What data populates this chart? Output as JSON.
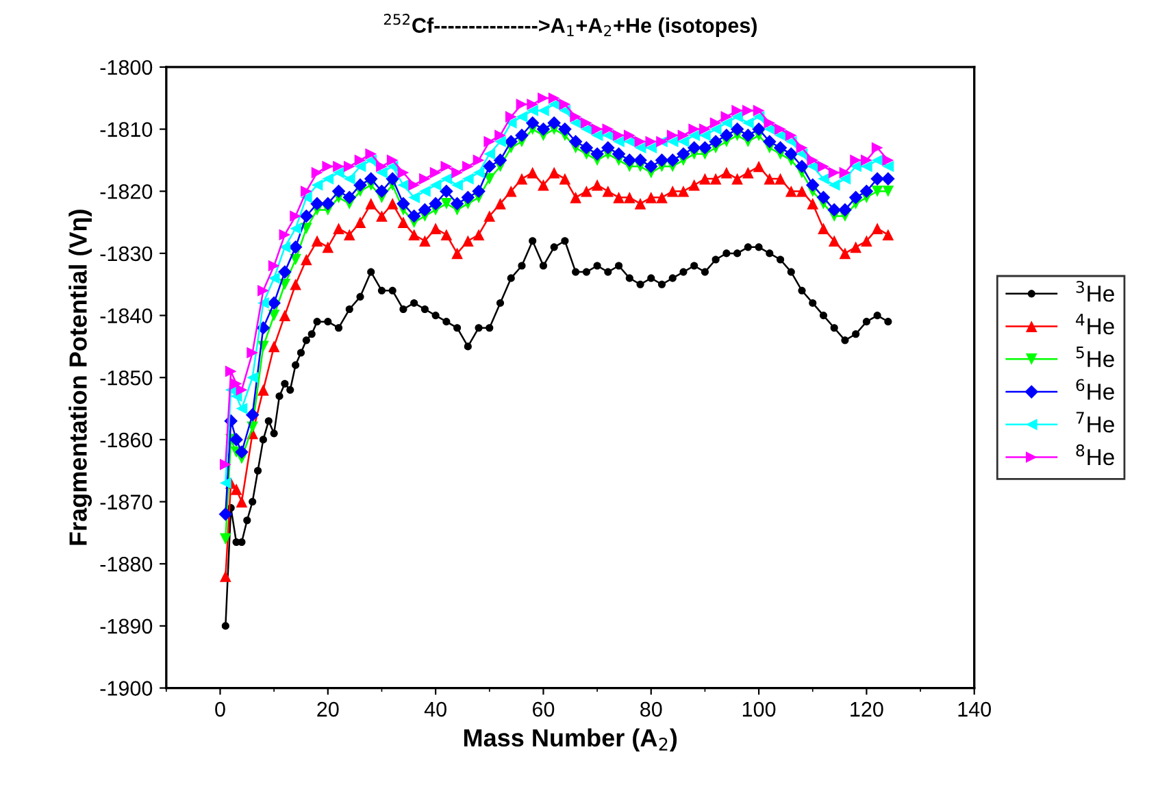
{
  "chart_data": {
    "type": "line",
    "title": "$^{252}$Cf--------------->A$_{1}$+A$_{2}$+He (isotopes)",
    "xlabel": "Mass Number (A$_{2}$)",
    "ylabel": "Fragmentation Potential (Vη)",
    "xlim": [
      -10,
      140
    ],
    "xticks": [
      0,
      20,
      40,
      60,
      80,
      100,
      120,
      140
    ],
    "ylim": [
      -1900,
      -1800
    ],
    "yticks": [
      -1900,
      -1890,
      -1880,
      -1870,
      -1860,
      -1850,
      -1840,
      -1830,
      -1820,
      -1810,
      -1800
    ],
    "grid": false,
    "legend": "right",
    "line_style": "solid",
    "series": [
      {
        "name": "$^{3}$He",
        "color": "#000000",
        "marker": "circle",
        "x": [
          1,
          2,
          3,
          4,
          5,
          6,
          7,
          8,
          9,
          10,
          11,
          12,
          13,
          14,
          15,
          16,
          17,
          18,
          20,
          22,
          24,
          26,
          28,
          30,
          32,
          34,
          36,
          38,
          40,
          42,
          44,
          46,
          48,
          50,
          52,
          54,
          56,
          58,
          60,
          62,
          64,
          66,
          68,
          70,
          72,
          74,
          76,
          78,
          80,
          82,
          84,
          86,
          88,
          90,
          92,
          94,
          96,
          98,
          100,
          102,
          104,
          106,
          108,
          110,
          112,
          114,
          116,
          118,
          120,
          122,
          124
        ],
        "values": [
          -1890,
          -1871,
          -1876.5,
          -1876.5,
          -1873,
          -1870,
          -1865,
          -1860,
          -1857,
          -1859,
          -1853,
          -1851,
          -1852,
          -1848,
          -1846,
          -1844,
          -1843,
          -1841,
          -1841,
          -1842,
          -1839,
          -1837,
          -1833,
          -1836,
          -1836,
          -1839,
          -1838,
          -1839,
          -1840,
          -1841,
          -1842,
          -1845,
          -1842,
          -1842,
          -1838,
          -1834,
          -1832,
          -1828,
          -1832,
          -1829,
          -1828,
          -1833,
          -1833,
          -1832,
          -1833,
          -1832,
          -1834,
          -1835,
          -1834,
          -1835,
          -1834,
          -1833,
          -1832,
          -1833,
          -1831,
          -1830,
          -1830,
          -1829,
          -1829,
          -1830,
          -1831,
          -1833,
          -1836,
          -1838,
          -1840,
          -1842,
          -1844,
          -1843,
          -1841,
          -1840,
          -1841
        ]
      },
      {
        "name": "$^{4}$He",
        "color": "#ff0000",
        "marker": "triangle",
        "x": [
          1,
          2,
          3,
          4,
          6,
          8,
          10,
          12,
          14,
          16,
          18,
          20,
          22,
          24,
          26,
          28,
          30,
          32,
          34,
          36,
          38,
          40,
          42,
          44,
          46,
          48,
          50,
          52,
          54,
          56,
          58,
          60,
          62,
          64,
          66,
          68,
          70,
          72,
          74,
          76,
          78,
          80,
          82,
          84,
          86,
          88,
          90,
          92,
          94,
          96,
          98,
          100,
          102,
          104,
          106,
          108,
          110,
          112,
          114,
          116,
          118,
          120,
          122,
          124
        ],
        "values": [
          -1882,
          -1867,
          -1868,
          -1870,
          -1859,
          -1852,
          -1845,
          -1840,
          -1835,
          -1831,
          -1828,
          -1829,
          -1826,
          -1827,
          -1825,
          -1822,
          -1824,
          -1822,
          -1825,
          -1827,
          -1828,
          -1826,
          -1827,
          -1830,
          -1828,
          -1827,
          -1824,
          -1822,
          -1820,
          -1818,
          -1817,
          -1819,
          -1817,
          -1818,
          -1821,
          -1820,
          -1819,
          -1820,
          -1821,
          -1821,
          -1822,
          -1821,
          -1821,
          -1820,
          -1820,
          -1819,
          -1818,
          -1818,
          -1817,
          -1818,
          -1817,
          -1816,
          -1818,
          -1818,
          -1820,
          -1820,
          -1822,
          -1826,
          -1828,
          -1830,
          -1829,
          -1828,
          -1826,
          -1827
        ]
      },
      {
        "name": "$^{5}$He",
        "color": "#00ff00",
        "marker": "triangle_down",
        "x": [
          1,
          2,
          3,
          4,
          6,
          8,
          10,
          12,
          14,
          16,
          18,
          20,
          22,
          24,
          26,
          28,
          30,
          32,
          34,
          36,
          38,
          40,
          42,
          44,
          46,
          48,
          50,
          52,
          54,
          56,
          58,
          60,
          62,
          64,
          66,
          68,
          70,
          72,
          74,
          76,
          78,
          80,
          82,
          84,
          86,
          88,
          90,
          92,
          94,
          96,
          98,
          100,
          102,
          104,
          106,
          108,
          110,
          112,
          114,
          116,
          118,
          120,
          122,
          124
        ],
        "values": [
          -1876,
          -1860,
          -1862,
          -1863,
          -1858,
          -1845,
          -1840,
          -1835,
          -1831,
          -1826,
          -1823,
          -1823,
          -1821,
          -1822,
          -1820,
          -1819,
          -1821,
          -1819,
          -1823,
          -1825,
          -1824,
          -1823,
          -1822,
          -1823,
          -1822,
          -1821,
          -1818,
          -1816,
          -1813,
          -1812,
          -1810,
          -1811,
          -1810,
          -1811,
          -1813,
          -1814,
          -1815,
          -1814,
          -1815,
          -1816,
          -1816,
          -1817,
          -1816,
          -1816,
          -1815,
          -1814,
          -1814,
          -1813,
          -1812,
          -1811,
          -1812,
          -1811,
          -1813,
          -1814,
          -1815,
          -1817,
          -1820,
          -1822,
          -1824,
          -1824,
          -1822,
          -1821,
          -1820,
          -1820
        ]
      },
      {
        "name": "$^{6}$He",
        "color": "#0000ff",
        "marker": "diamond",
        "x": [
          1,
          2,
          3,
          4,
          6,
          8,
          10,
          12,
          14,
          16,
          18,
          20,
          22,
          24,
          26,
          28,
          30,
          32,
          34,
          36,
          38,
          40,
          42,
          44,
          46,
          48,
          50,
          52,
          54,
          56,
          58,
          60,
          62,
          64,
          66,
          68,
          70,
          72,
          74,
          76,
          78,
          80,
          82,
          84,
          86,
          88,
          90,
          92,
          94,
          96,
          98,
          100,
          102,
          104,
          106,
          108,
          110,
          112,
          114,
          116,
          118,
          120,
          122,
          124
        ],
        "values": [
          -1872,
          -1857,
          -1860,
          -1862,
          -1856,
          -1842,
          -1838,
          -1833,
          -1829,
          -1824,
          -1822,
          -1822,
          -1820,
          -1821,
          -1819,
          -1818,
          -1820,
          -1818,
          -1822,
          -1824,
          -1823,
          -1822,
          -1820,
          -1822,
          -1821,
          -1820,
          -1816,
          -1815,
          -1812,
          -1811,
          -1809,
          -1810,
          -1809,
          -1810,
          -1812,
          -1813,
          -1814,
          -1813,
          -1814,
          -1815,
          -1815,
          -1816,
          -1815,
          -1815,
          -1814,
          -1813,
          -1813,
          -1812,
          -1811,
          -1810,
          -1811,
          -1810,
          -1812,
          -1813,
          -1814,
          -1816,
          -1819,
          -1821,
          -1823,
          -1823,
          -1821,
          -1820,
          -1818,
          -1818
        ]
      },
      {
        "name": "$^{7}$He",
        "color": "#00ffff",
        "marker": "triangle_left",
        "x": [
          1,
          2,
          3,
          4,
          6,
          8,
          10,
          12,
          14,
          16,
          18,
          20,
          22,
          24,
          26,
          28,
          30,
          32,
          34,
          36,
          38,
          40,
          42,
          44,
          46,
          48,
          50,
          52,
          54,
          56,
          58,
          60,
          62,
          64,
          66,
          68,
          70,
          72,
          74,
          76,
          78,
          80,
          82,
          84,
          86,
          88,
          90,
          92,
          94,
          96,
          98,
          100,
          102,
          104,
          106,
          108,
          110,
          112,
          114,
          116,
          118,
          120,
          122,
          124
        ],
        "values": [
          -1867,
          -1852,
          -1853,
          -1855,
          -1850,
          -1838,
          -1834,
          -1829,
          -1826,
          -1821,
          -1819,
          -1818,
          -1817,
          -1818,
          -1816,
          -1815,
          -1817,
          -1816,
          -1819,
          -1821,
          -1820,
          -1819,
          -1818,
          -1819,
          -1818,
          -1817,
          -1814,
          -1812,
          -1809,
          -1808,
          -1807,
          -1807,
          -1806,
          -1807,
          -1809,
          -1810,
          -1811,
          -1811,
          -1812,
          -1812,
          -1813,
          -1813,
          -1812,
          -1812,
          -1812,
          -1811,
          -1811,
          -1810,
          -1809,
          -1808,
          -1809,
          -1808,
          -1810,
          -1811,
          -1812,
          -1814,
          -1816,
          -1818,
          -1819,
          -1818,
          -1816,
          -1816,
          -1815,
          -1816
        ]
      },
      {
        "name": "$^{8}$He",
        "color": "#ff00ff",
        "marker": "triangle_right",
        "x": [
          1,
          2,
          3,
          4,
          6,
          8,
          10,
          12,
          14,
          16,
          18,
          20,
          22,
          24,
          26,
          28,
          30,
          32,
          34,
          36,
          38,
          40,
          42,
          44,
          46,
          48,
          50,
          52,
          54,
          56,
          58,
          60,
          62,
          64,
          66,
          68,
          70,
          72,
          74,
          76,
          78,
          80,
          82,
          84,
          86,
          88,
          90,
          92,
          94,
          96,
          98,
          100,
          102,
          104,
          106,
          108,
          110,
          112,
          114,
          116,
          118,
          120,
          122,
          124
        ],
        "values": [
          -1864,
          -1849,
          -1851,
          -1852,
          -1846,
          -1836,
          -1832,
          -1827,
          -1824,
          -1820,
          -1817,
          -1816,
          -1816,
          -1816,
          -1815,
          -1814,
          -1816,
          -1815,
          -1817,
          -1819,
          -1818,
          -1817,
          -1816,
          -1817,
          -1816,
          -1815,
          -1812,
          -1811,
          -1808,
          -1806,
          -1806,
          -1805,
          -1805,
          -1806,
          -1808,
          -1809,
          -1810,
          -1810,
          -1811,
          -1811,
          -1812,
          -1812,
          -1812,
          -1811,
          -1811,
          -1810,
          -1810,
          -1809,
          -1808,
          -1807,
          -1807,
          -1807,
          -1809,
          -1810,
          -1811,
          -1813,
          -1815,
          -1816,
          -1817,
          -1817,
          -1815,
          -1815,
          -1813,
          -1815
        ]
      }
    ]
  }
}
